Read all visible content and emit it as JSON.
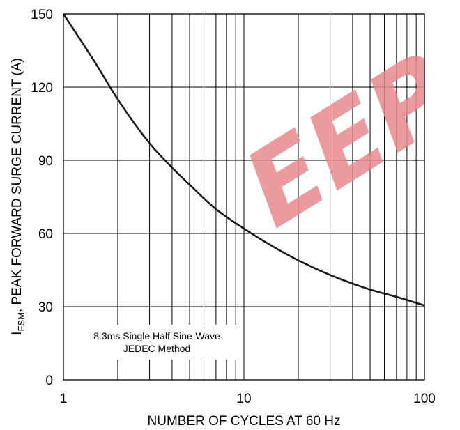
{
  "chart_data": {
    "type": "line",
    "x_scale": "log",
    "xlabel": "NUMBER OF CYCLES AT 60 Hz",
    "ylabel_main": "I",
    "ylabel_sub": "FSM",
    "ylabel_rest": ", PEAK FORWARD SURGE CURRENT (A)",
    "xlim": [
      1,
      100
    ],
    "ylim": [
      0,
      150
    ],
    "x_ticks": [
      {
        "value": 1,
        "label": "1"
      },
      {
        "value": 10,
        "label": "10"
      },
      {
        "value": 100,
        "label": "100"
      }
    ],
    "y_ticks": [
      {
        "value": 0,
        "label": "0"
      },
      {
        "value": 30,
        "label": "30"
      },
      {
        "value": 60,
        "label": "60"
      },
      {
        "value": 90,
        "label": "90"
      },
      {
        "value": 120,
        "label": "120"
      },
      {
        "value": 150,
        "label": "150"
      }
    ],
    "grid": true,
    "series": [
      {
        "color": "#1a1a1a",
        "x": [
          1,
          1.5,
          2,
          3,
          4,
          5,
          7,
          10,
          15,
          20,
          30,
          50,
          70,
          100
        ],
        "y": [
          150,
          130,
          115,
          97,
          87,
          80,
          70,
          62,
          54,
          49,
          43,
          37,
          34,
          30.5
        ]
      }
    ],
    "annotation_lines": [
      "8.3ms Single Half Sine-Wave",
      "JEDEC Method"
    ]
  },
  "watermark": {
    "text": "EEPW",
    "color": "#e8888c"
  }
}
